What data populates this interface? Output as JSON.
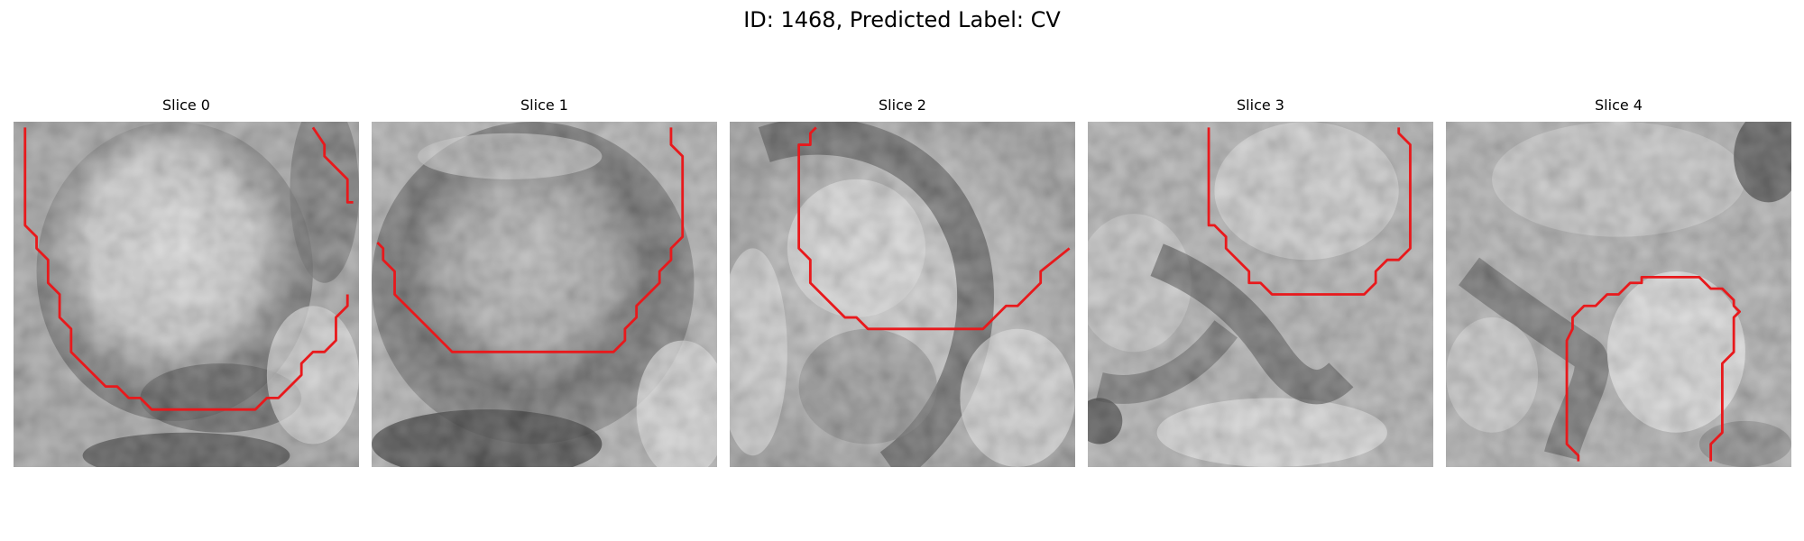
{
  "figure": {
    "title": "ID: 1468, Predicted Label: CV"
  },
  "slices": [
    {
      "title": "Slice 0"
    },
    {
      "title": "Slice 1"
    },
    {
      "title": "Slice 2"
    },
    {
      "title": "Slice 3"
    },
    {
      "title": "Slice 4"
    }
  ],
  "colors": {
    "contour": "#e8191c",
    "background": "#ffffff"
  }
}
